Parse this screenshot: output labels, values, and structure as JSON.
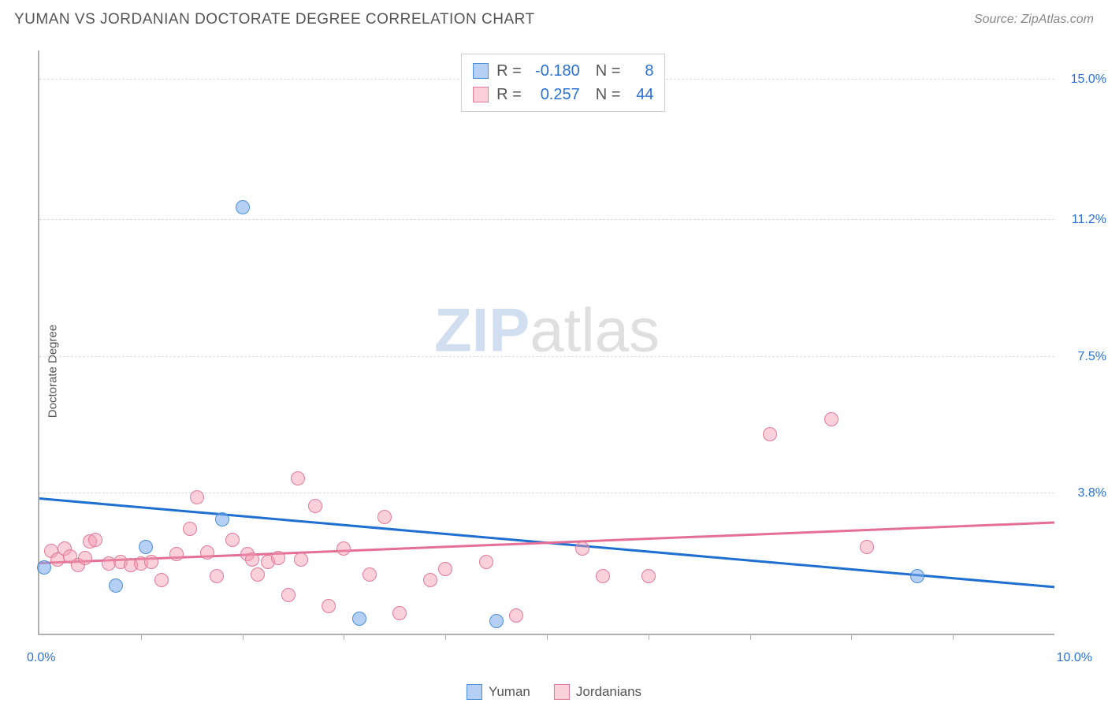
{
  "header": {
    "title": "YUMAN VS JORDANIAN DOCTORATE DEGREE CORRELATION CHART",
    "source": "Source: ZipAtlas.com"
  },
  "chart": {
    "type": "scatter",
    "ylabel": "Doctorate Degree",
    "xlim": [
      0.0,
      10.0
    ],
    "ylim": [
      0.0,
      15.8
    ],
    "x_label_min": "0.0%",
    "x_label_max": "10.0%",
    "x_label_color": "#2970d6",
    "ygrid": [
      {
        "value": 15.0,
        "label": "15.0%"
      },
      {
        "value": 11.2,
        "label": "11.2%"
      },
      {
        "value": 7.5,
        "label": "7.5%"
      },
      {
        "value": 3.8,
        "label": "3.8%"
      }
    ],
    "ytick_color": "#2970d6",
    "xticks": [
      1.0,
      2.0,
      3.0,
      4.0,
      5.0,
      6.0,
      7.0,
      8.0,
      9.0
    ],
    "grid_color": "#dddddd",
    "axis_color": "#b0b0b0",
    "background_color": "#ffffff",
    "series": [
      {
        "name": "Yuman",
        "marker_color_fill": "rgba(120,170,235,0.55)",
        "marker_color_stroke": "#4a8fd8",
        "marker_radius": 9,
        "line_color": "#1f6fd0",
        "line_width": 2.5,
        "trend": {
          "x1": 0.0,
          "y1": 3.65,
          "x2": 10.0,
          "y2": 1.25
        },
        "points": [
          {
            "x": 0.05,
            "y": 1.8
          },
          {
            "x": 0.75,
            "y": 1.3
          },
          {
            "x": 1.05,
            "y": 2.35
          },
          {
            "x": 1.8,
            "y": 3.1
          },
          {
            "x": 2.0,
            "y": 11.55
          },
          {
            "x": 3.15,
            "y": 0.4
          },
          {
            "x": 4.5,
            "y": 0.35
          },
          {
            "x": 8.65,
            "y": 1.55
          }
        ]
      },
      {
        "name": "Jordanians",
        "marker_color_fill": "rgba(245,150,175,0.45)",
        "marker_color_stroke": "#e07a9a",
        "marker_radius": 9,
        "line_color": "#e46f94",
        "line_width": 2.5,
        "trend": {
          "x1": 0.0,
          "y1": 1.9,
          "x2": 10.0,
          "y2": 3.0
        },
        "points": [
          {
            "x": 0.12,
            "y": 2.25
          },
          {
            "x": 0.18,
            "y": 2.0
          },
          {
            "x": 0.25,
            "y": 2.3
          },
          {
            "x": 0.3,
            "y": 2.1
          },
          {
            "x": 0.38,
            "y": 1.85
          },
          {
            "x": 0.45,
            "y": 2.05
          },
          {
            "x": 0.5,
            "y": 2.5
          },
          {
            "x": 0.55,
            "y": 2.55
          },
          {
            "x": 0.68,
            "y": 1.9
          },
          {
            "x": 0.8,
            "y": 1.95
          },
          {
            "x": 0.9,
            "y": 1.85
          },
          {
            "x": 1.0,
            "y": 1.9
          },
          {
            "x": 1.1,
            "y": 1.95
          },
          {
            "x": 1.2,
            "y": 1.45
          },
          {
            "x": 1.35,
            "y": 2.15
          },
          {
            "x": 1.48,
            "y": 2.85
          },
          {
            "x": 1.55,
            "y": 3.7
          },
          {
            "x": 1.65,
            "y": 2.2
          },
          {
            "x": 1.75,
            "y": 1.55
          },
          {
            "x": 1.9,
            "y": 2.55
          },
          {
            "x": 2.05,
            "y": 2.15
          },
          {
            "x": 2.1,
            "y": 2.0
          },
          {
            "x": 2.15,
            "y": 1.6
          },
          {
            "x": 2.25,
            "y": 1.95
          },
          {
            "x": 2.35,
            "y": 2.05
          },
          {
            "x": 2.45,
            "y": 1.05
          },
          {
            "x": 2.55,
            "y": 4.2
          },
          {
            "x": 2.58,
            "y": 2.0
          },
          {
            "x": 2.72,
            "y": 3.45
          },
          {
            "x": 2.85,
            "y": 0.75
          },
          {
            "x": 3.0,
            "y": 2.3
          },
          {
            "x": 3.25,
            "y": 1.6
          },
          {
            "x": 3.4,
            "y": 3.15
          },
          {
            "x": 3.55,
            "y": 0.55
          },
          {
            "x": 3.85,
            "y": 1.45
          },
          {
            "x": 4.0,
            "y": 1.75
          },
          {
            "x": 4.4,
            "y": 1.95
          },
          {
            "x": 4.7,
            "y": 0.5
          },
          {
            "x": 5.35,
            "y": 2.3
          },
          {
            "x": 5.55,
            "y": 1.55
          },
          {
            "x": 6.0,
            "y": 1.55
          },
          {
            "x": 7.2,
            "y": 5.4
          },
          {
            "x": 7.8,
            "y": 5.8
          },
          {
            "x": 8.15,
            "y": 2.35
          }
        ]
      }
    ],
    "legend_top": {
      "rows": [
        {
          "swatch_fill": "rgba(120,170,235,0.55)",
          "swatch_stroke": "#4a8fd8",
          "r_label": "R =",
          "r_value": "-0.180",
          "n_label": "N =",
          "n_value": "8"
        },
        {
          "swatch_fill": "rgba(245,150,175,0.45)",
          "swatch_stroke": "#e07a9a",
          "r_label": "R =",
          "r_value": "0.257",
          "n_label": "N =",
          "n_value": "44"
        }
      ],
      "label_color": "#555555",
      "value_color": "#2970d6"
    },
    "legend_bottom": {
      "items": [
        {
          "swatch_fill": "rgba(120,170,235,0.55)",
          "swatch_stroke": "#4a8fd8",
          "label": "Yuman"
        },
        {
          "swatch_fill": "rgba(245,150,175,0.45)",
          "swatch_stroke": "#e07a9a",
          "label": "Jordanians"
        }
      ]
    },
    "watermark": {
      "text_bold": "ZIP",
      "text_light": "atlas",
      "color_bold": "rgba(120,160,210,0.35)",
      "color_light": "rgba(150,150,150,0.30)"
    }
  }
}
